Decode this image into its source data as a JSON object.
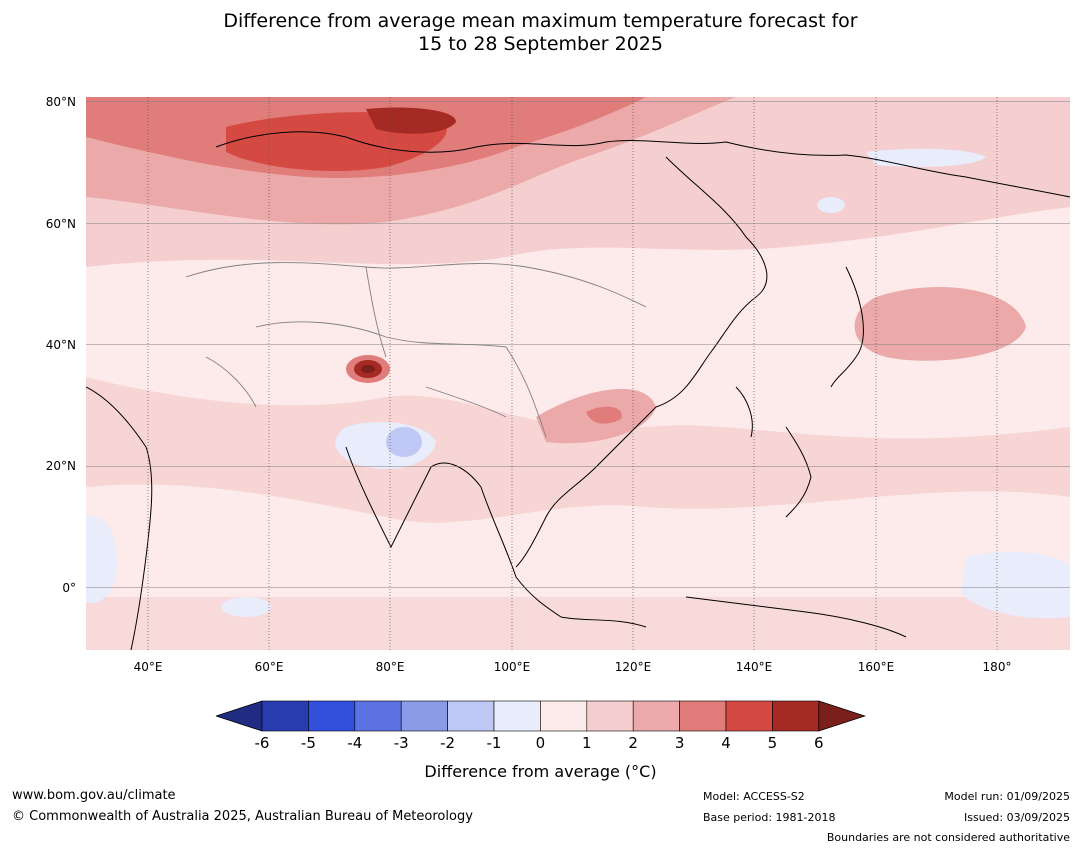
{
  "title_line1": "Difference from average mean maximum temperature forecast for",
  "title_line2": "15 to 28 September 2025",
  "lat_labels": [
    "80°N",
    "60°N",
    "40°N",
    "20°N",
    "0°"
  ],
  "lon_labels": [
    "40°E",
    "60°E",
    "80°E",
    "100°E",
    "120°E",
    "140°E",
    "160°E",
    "180°"
  ],
  "colorbar": {
    "ticks": [
      "-6",
      "-5",
      "-4",
      "-3",
      "-2",
      "-1",
      "0",
      "1",
      "2",
      "3",
      "4",
      "5",
      "6"
    ],
    "colors": [
      "#1f2c82",
      "#2a3db0",
      "#3150dc",
      "#5d72e2",
      "#8b9be8",
      "#bfc8f4",
      "#e8ecfb",
      "#fdeaea",
      "#f5cfcf",
      "#ebaaa9",
      "#e07c79",
      "#d44a42",
      "#a62a24",
      "#7a1f1a"
    ],
    "label": "Difference from average (°C)"
  },
  "footer": {
    "url": "www.bom.gov.au/climate",
    "copyright": "© Commonwealth of Australia 2025, Australian Bureau of Meteorology",
    "model": "Model: ACCESS-S2",
    "base_period": "Base period: 1981-2018",
    "model_run": "Model run: 01/09/2025",
    "issued": "Issued: 03/09/2025",
    "disclaimer": "Boundaries are not considered authoritative"
  }
}
